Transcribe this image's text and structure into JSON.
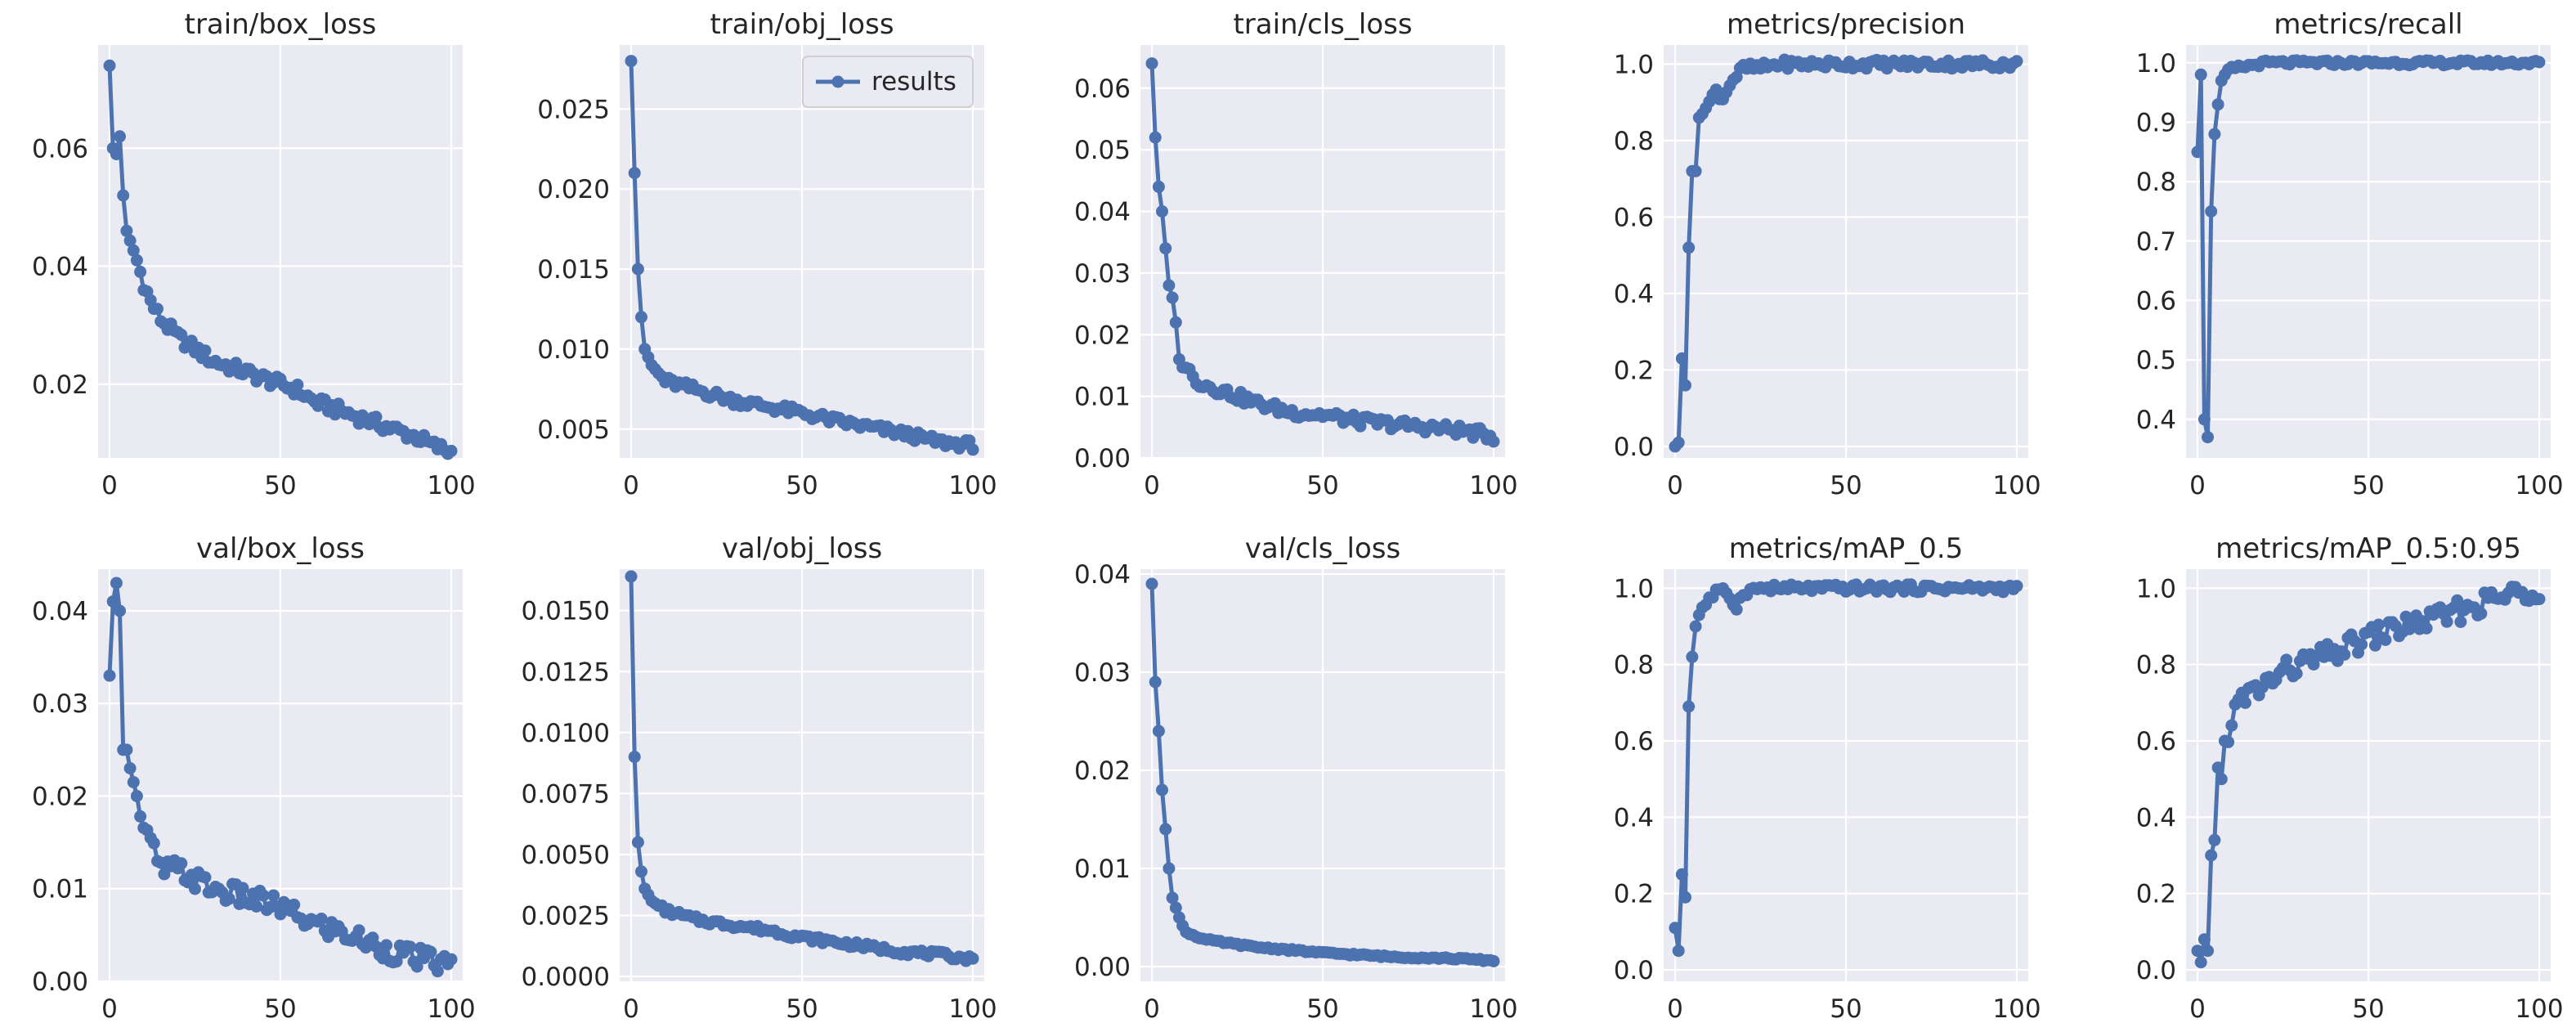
{
  "colors": {
    "series": "#4c72b0",
    "plot_background": "#eaeaf2",
    "grid": "#ffffff"
  },
  "legend": {
    "label": "results",
    "chart": "train/obj_loss",
    "placement": "top-right"
  },
  "chart_data": [
    {
      "type": "line",
      "title": "train/box_loss",
      "xlim": [
        0,
        100
      ],
      "yticks": [
        0.02,
        0.04,
        0.06
      ],
      "ytick_labels": [
        "0.02",
        "0.04",
        "0.06"
      ],
      "ylim": [
        0.0075,
        0.0775
      ],
      "xticks": [
        0,
        50,
        100
      ],
      "anchors": [
        [
          0,
          0.074
        ],
        [
          1,
          0.06
        ],
        [
          2,
          0.059
        ],
        [
          3,
          0.062
        ],
        [
          4,
          0.052
        ],
        [
          5,
          0.046
        ],
        [
          8,
          0.041
        ],
        [
          10,
          0.037
        ],
        [
          12,
          0.034
        ],
        [
          15,
          0.031
        ],
        [
          20,
          0.028
        ],
        [
          25,
          0.026
        ],
        [
          30,
          0.024
        ],
        [
          35,
          0.023
        ],
        [
          40,
          0.022
        ],
        [
          45,
          0.021
        ],
        [
          50,
          0.02
        ],
        [
          55,
          0.019
        ],
        [
          60,
          0.017
        ],
        [
          65,
          0.016
        ],
        [
          70,
          0.015
        ],
        [
          75,
          0.014
        ],
        [
          80,
          0.013
        ],
        [
          85,
          0.012
        ],
        [
          90,
          0.011
        ],
        [
          95,
          0.0095
        ],
        [
          100,
          0.0085
        ]
      ],
      "noise": 0.0011
    },
    {
      "type": "line",
      "title": "train/obj_loss",
      "xlim": [
        0,
        100
      ],
      "yticks": [
        0.005,
        0.01,
        0.015,
        0.02,
        0.025
      ],
      "ytick_labels": [
        "0.005",
        "0.010",
        "0.015",
        "0.020",
        "0.025"
      ],
      "ylim": [
        0.0032,
        0.029
      ],
      "xticks": [
        0,
        50,
        100
      ],
      "anchors": [
        [
          0,
          0.028
        ],
        [
          1,
          0.021
        ],
        [
          2,
          0.015
        ],
        [
          3,
          0.012
        ],
        [
          4,
          0.01
        ],
        [
          6,
          0.009
        ],
        [
          10,
          0.008
        ],
        [
          15,
          0.0077
        ],
        [
          20,
          0.0074
        ],
        [
          30,
          0.0068
        ],
        [
          40,
          0.0064
        ],
        [
          50,
          0.006
        ],
        [
          60,
          0.0055
        ],
        [
          70,
          0.0051
        ],
        [
          80,
          0.0047
        ],
        [
          90,
          0.0042
        ],
        [
          100,
          0.004
        ]
      ],
      "noise": 0.0003
    },
    {
      "type": "line",
      "title": "train/cls_loss",
      "xlim": [
        0,
        100
      ],
      "yticks": [
        0.0,
        0.01,
        0.02,
        0.03,
        0.04,
        0.05,
        0.06
      ],
      "ytick_labels": [
        "0.00",
        "0.01",
        "0.02",
        "0.03",
        "0.04",
        "0.05",
        "0.06"
      ],
      "ylim": [
        0.0,
        0.067
      ],
      "xticks": [
        0,
        50,
        100
      ],
      "anchors": [
        [
          0,
          0.064
        ],
        [
          1,
          0.052
        ],
        [
          2,
          0.044
        ],
        [
          3,
          0.04
        ],
        [
          4,
          0.034
        ],
        [
          5,
          0.028
        ],
        [
          6,
          0.026
        ],
        [
          7,
          0.022
        ],
        [
          8,
          0.016
        ],
        [
          10,
          0.015
        ],
        [
          12,
          0.013
        ],
        [
          15,
          0.012
        ],
        [
          20,
          0.011
        ],
        [
          30,
          0.009
        ],
        [
          40,
          0.0075
        ],
        [
          50,
          0.007
        ],
        [
          60,
          0.006
        ],
        [
          70,
          0.0055
        ],
        [
          80,
          0.005
        ],
        [
          90,
          0.0045
        ],
        [
          100,
          0.0035
        ]
      ],
      "noise": 0.0009
    },
    {
      "type": "line",
      "title": "metrics/precision",
      "xlim": [
        0,
        100
      ],
      "yticks": [
        0.0,
        0.2,
        0.4,
        0.6,
        0.8,
        1.0
      ],
      "ytick_labels": [
        "0.0",
        "0.2",
        "0.4",
        "0.6",
        "0.8",
        "1.0"
      ],
      "ylim": [
        -0.03,
        1.05
      ],
      "xticks": [
        0,
        50,
        100
      ],
      "anchors": [
        [
          0,
          0.0
        ],
        [
          1,
          0.01
        ],
        [
          2,
          0.23
        ],
        [
          3,
          0.16
        ],
        [
          4,
          0.52
        ],
        [
          5,
          0.72
        ],
        [
          6,
          0.72
        ],
        [
          7,
          0.86
        ],
        [
          8,
          0.87
        ],
        [
          10,
          0.9
        ],
        [
          12,
          0.93
        ],
        [
          14,
          0.91
        ],
        [
          16,
          0.95
        ],
        [
          18,
          0.97
        ],
        [
          20,
          0.99
        ],
        [
          25,
          0.99
        ],
        [
          30,
          1.0
        ],
        [
          100,
          1.0
        ]
      ],
      "noise": 0.012
    },
    {
      "type": "line",
      "title": "metrics/recall",
      "xlim": [
        0,
        100
      ],
      "yticks": [
        0.4,
        0.5,
        0.6,
        0.7,
        0.8,
        0.9,
        1.0
      ],
      "ytick_labels": [
        "0.4",
        "0.5",
        "0.6",
        "0.7",
        "0.8",
        "0.9",
        "1.0"
      ],
      "ylim": [
        0.335,
        1.03
      ],
      "xticks": [
        0,
        50,
        100
      ],
      "anchors": [
        [
          0,
          0.85
        ],
        [
          1,
          0.98
        ],
        [
          2,
          0.4
        ],
        [
          3,
          0.37
        ],
        [
          4,
          0.75
        ],
        [
          5,
          0.88
        ],
        [
          6,
          0.93
        ],
        [
          7,
          0.97
        ],
        [
          8,
          0.98
        ],
        [
          10,
          0.99
        ],
        [
          15,
          0.995
        ],
        [
          20,
          1.0
        ],
        [
          100,
          1.0
        ]
      ],
      "noise": 0.004
    },
    {
      "type": "line",
      "title": "val/box_loss",
      "xlim": [
        0,
        100
      ],
      "yticks": [
        0.0,
        0.01,
        0.02,
        0.03,
        0.04
      ],
      "ytick_labels": [
        "0.00",
        "0.01",
        "0.02",
        "0.03",
        "0.04"
      ],
      "ylim": [
        0.0,
        0.0445
      ],
      "xticks": [
        0,
        50,
        100
      ],
      "anchors": [
        [
          0,
          0.033
        ],
        [
          1,
          0.041
        ],
        [
          2,
          0.043
        ],
        [
          3,
          0.04
        ],
        [
          4,
          0.025
        ],
        [
          5,
          0.025
        ],
        [
          6,
          0.023
        ],
        [
          8,
          0.02
        ],
        [
          10,
          0.016
        ],
        [
          12,
          0.015
        ],
        [
          15,
          0.012
        ],
        [
          20,
          0.012
        ],
        [
          25,
          0.011
        ],
        [
          30,
          0.01
        ],
        [
          35,
          0.0095
        ],
        [
          40,
          0.009
        ],
        [
          45,
          0.0085
        ],
        [
          50,
          0.008
        ],
        [
          55,
          0.007
        ],
        [
          60,
          0.0062
        ],
        [
          70,
          0.005
        ],
        [
          80,
          0.0035
        ],
        [
          90,
          0.0025
        ],
        [
          100,
          0.0017
        ]
      ],
      "noise": 0.0012
    },
    {
      "type": "line",
      "title": "val/obj_loss",
      "xlim": [
        0,
        100
      ],
      "yticks": [
        0.0,
        0.0025,
        0.005,
        0.0075,
        0.01,
        0.0125,
        0.015
      ],
      "ytick_labels": [
        "0.0000",
        "0.0025",
        "0.0050",
        "0.0075",
        "0.0100",
        "0.0125",
        "0.0150"
      ],
      "ylim": [
        -0.0002,
        0.0167
      ],
      "xticks": [
        0,
        50,
        100
      ],
      "anchors": [
        [
          0,
          0.0164
        ],
        [
          1,
          0.009
        ],
        [
          2,
          0.0055
        ],
        [
          3,
          0.0043
        ],
        [
          4,
          0.0036
        ],
        [
          6,
          0.0031
        ],
        [
          8,
          0.0029
        ],
        [
          10,
          0.0027
        ],
        [
          15,
          0.0025
        ],
        [
          20,
          0.0023
        ],
        [
          30,
          0.0021
        ],
        [
          40,
          0.0019
        ],
        [
          50,
          0.0016
        ],
        [
          60,
          0.0014
        ],
        [
          70,
          0.0012
        ],
        [
          80,
          0.001
        ],
        [
          90,
          0.0009
        ],
        [
          100,
          0.0007
        ]
      ],
      "noise": 0.00012
    },
    {
      "type": "line",
      "title": "val/cls_loss",
      "xlim": [
        0,
        100
      ],
      "yticks": [
        0.0,
        0.01,
        0.02,
        0.03,
        0.04
      ],
      "ytick_labels": [
        "0.00",
        "0.01",
        "0.02",
        "0.03",
        "0.04"
      ],
      "ylim": [
        -0.0015,
        0.0405
      ],
      "xticks": [
        0,
        50,
        100
      ],
      "anchors": [
        [
          0,
          0.039
        ],
        [
          1,
          0.029
        ],
        [
          2,
          0.024
        ],
        [
          3,
          0.018
        ],
        [
          4,
          0.014
        ],
        [
          5,
          0.01
        ],
        [
          6,
          0.007
        ],
        [
          7,
          0.006
        ],
        [
          8,
          0.005
        ],
        [
          10,
          0.0035
        ],
        [
          15,
          0.0028
        ],
        [
          20,
          0.0025
        ],
        [
          30,
          0.002
        ],
        [
          40,
          0.0017
        ],
        [
          50,
          0.0014
        ],
        [
          60,
          0.0012
        ],
        [
          70,
          0.001
        ],
        [
          80,
          0.0009
        ],
        [
          90,
          0.0008
        ],
        [
          100,
          0.0006
        ]
      ],
      "noise": 0.0001
    },
    {
      "type": "line",
      "title": "metrics/mAP_0.5",
      "xlim": [
        0,
        100
      ],
      "yticks": [
        0.0,
        0.2,
        0.4,
        0.6,
        0.8,
        1.0
      ],
      "ytick_labels": [
        "0.0",
        "0.2",
        "0.4",
        "0.6",
        "0.8",
        "1.0"
      ],
      "ylim": [
        -0.03,
        1.05
      ],
      "xticks": [
        0,
        50,
        100
      ],
      "anchors": [
        [
          0,
          0.11
        ],
        [
          1,
          0.05
        ],
        [
          2,
          0.25
        ],
        [
          3,
          0.19
        ],
        [
          4,
          0.69
        ],
        [
          5,
          0.82
        ],
        [
          6,
          0.9
        ],
        [
          7,
          0.93
        ],
        [
          8,
          0.95
        ],
        [
          10,
          0.97
        ],
        [
          12,
          0.99
        ],
        [
          15,
          0.99
        ],
        [
          18,
          0.95
        ],
        [
          20,
          0.99
        ],
        [
          25,
          1.0
        ],
        [
          100,
          1.0
        ]
      ],
      "noise": 0.01
    },
    {
      "type": "line",
      "title": "metrics/mAP_0.5:0.95",
      "xlim": [
        0,
        100
      ],
      "yticks": [
        0.0,
        0.2,
        0.4,
        0.6,
        0.8,
        1.0
      ],
      "ytick_labels": [
        "0.0",
        "0.2",
        "0.4",
        "0.6",
        "0.8",
        "1.0"
      ],
      "ylim": [
        -0.03,
        1.05
      ],
      "xticks": [
        0,
        50,
        100
      ],
      "anchors": [
        [
          0,
          0.05
        ],
        [
          1,
          0.02
        ],
        [
          2,
          0.08
        ],
        [
          3,
          0.05
        ],
        [
          4,
          0.3
        ],
        [
          5,
          0.34
        ],
        [
          6,
          0.53
        ],
        [
          7,
          0.5
        ],
        [
          8,
          0.6
        ],
        [
          10,
          0.65
        ],
        [
          12,
          0.7
        ],
        [
          15,
          0.72
        ],
        [
          20,
          0.75
        ],
        [
          25,
          0.78
        ],
        [
          30,
          0.8
        ],
        [
          40,
          0.83
        ],
        [
          50,
          0.87
        ],
        [
          60,
          0.9
        ],
        [
          70,
          0.92
        ],
        [
          80,
          0.95
        ],
        [
          90,
          0.98
        ],
        [
          100,
          1.0
        ]
      ],
      "noise": 0.03
    }
  ]
}
